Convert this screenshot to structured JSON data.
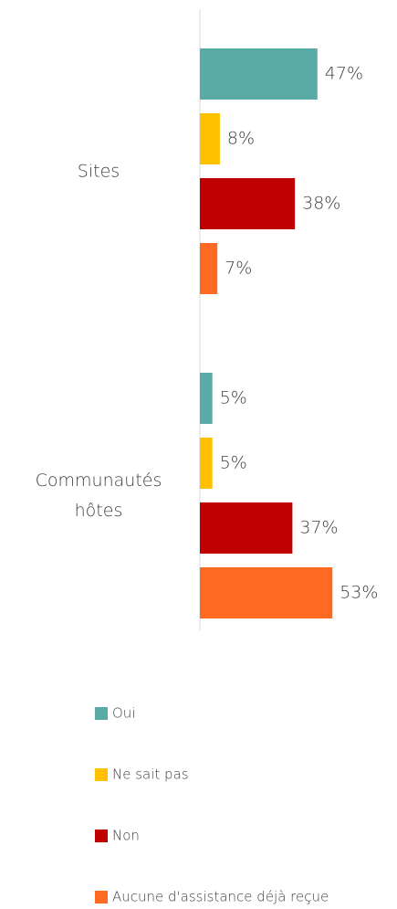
{
  "chart_data": {
    "type": "bar",
    "orientation": "horizontal",
    "categories": [
      "Sites",
      "Communautés hôtes"
    ],
    "series": [
      {
        "name": "Oui",
        "color": "#5aaba6",
        "values": [
          47,
          5
        ],
        "value_labels": [
          "47%",
          "5%"
        ]
      },
      {
        "name": "Ne sait pas",
        "color": "#ffc000",
        "values": [
          8,
          5
        ],
        "value_labels": [
          "8%",
          "5%"
        ]
      },
      {
        "name": "Non",
        "color": "#c00000",
        "values": [
          38,
          37
        ],
        "value_labels": [
          "38%",
          "37%"
        ]
      },
      {
        "name": "Aucune d'assistance déjà reçue",
        "color": "#ff6a23",
        "values": [
          7,
          53
        ],
        "value_labels": [
          "7%",
          "53%"
        ]
      }
    ],
    "legend": "bottom"
  }
}
